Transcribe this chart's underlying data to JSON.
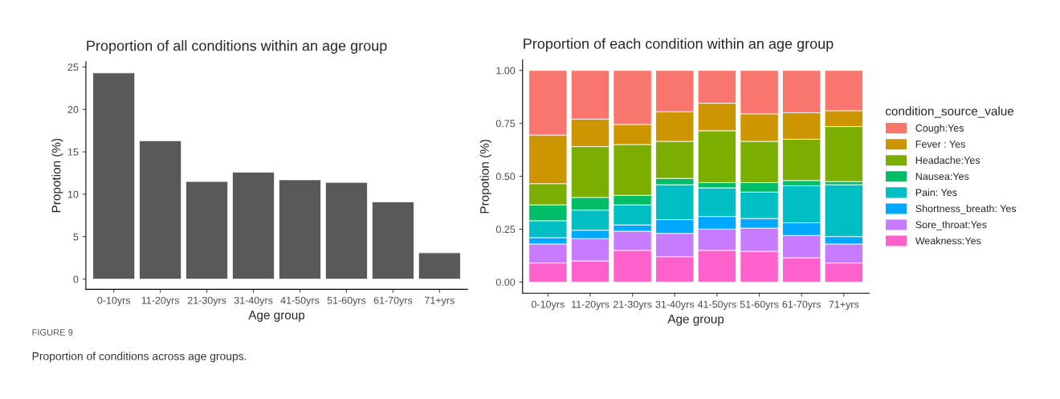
{
  "chart_data": [
    {
      "type": "bar",
      "title": "Proportion of all conditions within an age group",
      "xlabel": "Age group",
      "ylabel": "Propotion (%)",
      "categories": [
        "0-10yrs",
        "11-20yrs",
        "21-30yrs",
        "31-40yrs",
        "41-50yrs",
        "51-60yrs",
        "61-70yrs",
        "71+yrs"
      ],
      "values": [
        24.3,
        16.3,
        11.5,
        12.6,
        11.7,
        11.4,
        9.1,
        3.1
      ],
      "color": "#595959",
      "ylim": [
        -1.2,
        25.6
      ],
      "yticks": [
        0,
        5,
        10,
        15,
        20,
        25
      ],
      "grid": false,
      "legend": false,
      "annotations": [
        "FIGURE 9",
        "Proportion of conditions across age groups."
      ]
    },
    {
      "type": "bar",
      "title": "Proportion of each condition within an age group",
      "xlabel": "Age group",
      "ylabel": "Propotion (%)",
      "categories": [
        "0-10yrs",
        "11-20yrs",
        "21-30yrs",
        "31-40yrs",
        "41-50yrs",
        "51-60yrs",
        "61-70yrs",
        "71+yrs"
      ],
      "stacked": true,
      "legend": "right",
      "legend_title": "condition_source_value",
      "grid": false,
      "ylim": [
        -0.053,
        1.05
      ],
      "yticks": [
        {
          "value": 0,
          "label": "0.00"
        },
        {
          "value": 0.25,
          "label": "0.25"
        },
        {
          "value": 0.5,
          "label": "0.50"
        },
        {
          "value": 0.75,
          "label": "0.75"
        },
        {
          "value": 1,
          "label": "1.00"
        }
      ],
      "series": [
        {
          "name": "Weakness:Yes",
          "color": "#ff61cc",
          "values": [
            0.09,
            0.1,
            0.15,
            0.12,
            0.15,
            0.145,
            0.115,
            0.09
          ]
        },
        {
          "name": "Sore_throat:Yes",
          "color": "#c77cff",
          "values": [
            0.09,
            0.105,
            0.09,
            0.11,
            0.1,
            0.11,
            0.105,
            0.09
          ]
        },
        {
          "name": "Shortness_breath: Yes",
          "color": "#00a9ff",
          "values": [
            0.03,
            0.04,
            0.03,
            0.065,
            0.06,
            0.045,
            0.06,
            0.035
          ]
        },
        {
          "name": "Pain: Yes",
          "color": "#00bfc4",
          "values": [
            0.08,
            0.095,
            0.095,
            0.165,
            0.135,
            0.125,
            0.175,
            0.245
          ]
        },
        {
          "name": "Nausea:Yes",
          "color": "#00be67",
          "values": [
            0.075,
            0.06,
            0.045,
            0.03,
            0.025,
            0.045,
            0.025,
            0.015
          ]
        },
        {
          "name": "Headache:Yes",
          "color": "#7cae00",
          "values": [
            0.1,
            0.24,
            0.24,
            0.175,
            0.245,
            0.195,
            0.195,
            0.26
          ]
        },
        {
          "name": "Fever : Yes",
          "color": "#cd9600",
          "values": [
            0.23,
            0.13,
            0.095,
            0.14,
            0.13,
            0.13,
            0.125,
            0.075
          ]
        },
        {
          "name": "Cough:Yes",
          "color": "#f8766d",
          "values": [
            0.305,
            0.23,
            0.255,
            0.195,
            0.155,
            0.205,
            0.2,
            0.19
          ]
        }
      ]
    }
  ]
}
